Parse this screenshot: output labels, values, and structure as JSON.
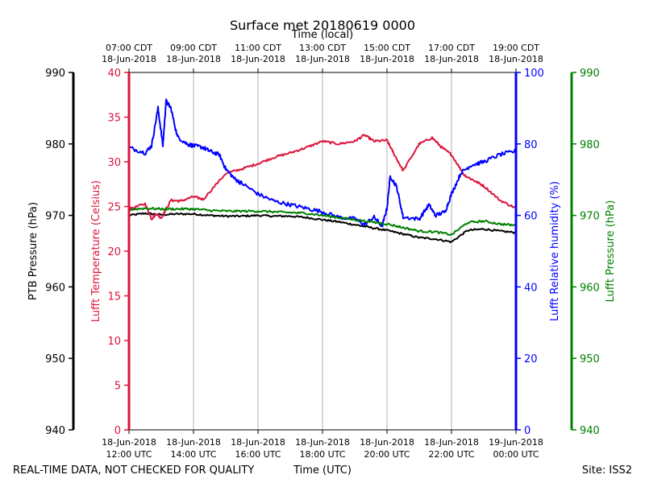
{
  "colors": {
    "pressure": "#000000",
    "temperature": "#dc143c",
    "humidity": "#0000ff",
    "luftt_pressure": "#008000",
    "grid": "#b0b0b0"
  },
  "footer": {
    "quality_note": "REAL-TIME DATA, NOT CHECKED FOR QUALITY",
    "site": "Site: ISS2"
  },
  "chart_data": {
    "type": "line",
    "title": "Surface met 20180619 0000",
    "xlabel": "Time (UTC)",
    "x2label": "Time (local)",
    "x_range_hours_utc": [
      12,
      24
    ],
    "bottom_ticks": [
      {
        "hour": 12,
        "date": "18-Jun-2018",
        "time": "12:00 UTC"
      },
      {
        "hour": 14,
        "date": "18-Jun-2018",
        "time": "14:00 UTC"
      },
      {
        "hour": 16,
        "date": "18-Jun-2018",
        "time": "16:00 UTC"
      },
      {
        "hour": 18,
        "date": "18-Jun-2018",
        "time": "18:00 UTC"
      },
      {
        "hour": 20,
        "date": "18-Jun-2018",
        "time": "20:00 UTC"
      },
      {
        "hour": 22,
        "date": "18-Jun-2018",
        "time": "22:00 UTC"
      },
      {
        "hour": 24,
        "date": "19-Jun-2018",
        "time": "00:00 UTC"
      }
    ],
    "top_ticks": [
      {
        "hour": 12,
        "time": "07:00 CDT",
        "date": "18-Jun-2018"
      },
      {
        "hour": 14,
        "time": "09:00 CDT",
        "date": "18-Jun-2018"
      },
      {
        "hour": 16,
        "time": "11:00 CDT",
        "date": "18-Jun-2018"
      },
      {
        "hour": 18,
        "time": "13:00 CDT",
        "date": "18-Jun-2018"
      },
      {
        "hour": 20,
        "time": "15:00 CDT",
        "date": "18-Jun-2018"
      },
      {
        "hour": 22,
        "time": "17:00 CDT",
        "date": "18-Jun-2018"
      },
      {
        "hour": 24,
        "time": "19:00 CDT",
        "date": "18-Jun-2018"
      }
    ],
    "axes": {
      "ptb": {
        "label": "PTB Pressure (hPa)",
        "range": [
          940,
          990
        ],
        "ticks": [
          940,
          950,
          960,
          970,
          980,
          990
        ]
      },
      "temp": {
        "label": "Lufft Temperature (Celsius)",
        "range": [
          0,
          40
        ],
        "ticks": [
          0,
          5,
          10,
          15,
          20,
          25,
          30,
          35,
          40
        ]
      },
      "rh": {
        "label": "Lufft Relative humidity (%)",
        "range": [
          0,
          100
        ],
        "ticks": [
          0,
          20,
          40,
          60,
          80,
          100
        ]
      },
      "lp": {
        "label": "Lufft Pressure (hPa)",
        "range": [
          940,
          990
        ],
        "ticks": [
          940,
          950,
          960,
          970,
          980,
          990
        ]
      }
    },
    "series": [
      {
        "name": "PTB Pressure",
        "axis": "ptb",
        "color": "#000000",
        "x": [
          12.0,
          12.5,
          13.0,
          13.5,
          14.0,
          14.5,
          15.0,
          15.5,
          16.0,
          16.5,
          17.0,
          17.5,
          18.0,
          18.5,
          19.0,
          19.5,
          20.0,
          20.5,
          21.0,
          21.5,
          22.0,
          22.5,
          23.0,
          23.5,
          24.0
        ],
        "y": [
          970.0,
          970.3,
          970.1,
          970.2,
          970.2,
          970.0,
          969.9,
          969.9,
          970.0,
          969.9,
          969.9,
          969.7,
          969.4,
          969.1,
          968.7,
          968.3,
          967.9,
          967.4,
          966.9,
          966.7,
          966.3,
          967.9,
          968.1,
          967.8,
          967.6
        ]
      },
      {
        "name": "Lufft Temperature",
        "axis": "temp",
        "color": "#dc143c",
        "x": [
          12.0,
          12.5,
          12.7,
          12.85,
          13.0,
          13.3,
          13.6,
          14.0,
          14.3,
          15.0,
          15.5,
          16.0,
          16.5,
          17.0,
          17.5,
          18.0,
          18.5,
          19.0,
          19.3,
          19.6,
          20.0,
          20.2,
          20.5,
          21.0,
          21.4,
          21.7,
          22.0,
          22.4,
          22.7,
          23.0,
          23.5,
          24.0
        ],
        "y": [
          24.7,
          25.3,
          23.6,
          24.2,
          23.7,
          25.7,
          25.6,
          26.1,
          25.8,
          28.7,
          29.2,
          29.8,
          30.5,
          31.0,
          31.6,
          32.3,
          32.0,
          32.3,
          33.0,
          32.3,
          32.4,
          31.0,
          29.0,
          32.0,
          32.7,
          31.6,
          30.8,
          28.5,
          27.9,
          27.3,
          25.7,
          24.8
        ]
      },
      {
        "name": "Lufft Relative humidity",
        "axis": "rh",
        "color": "#0000ff",
        "x": [
          12.0,
          12.5,
          12.7,
          12.9,
          13.05,
          13.15,
          13.3,
          13.5,
          13.8,
          14.0,
          14.3,
          14.5,
          14.8,
          15.0,
          15.3,
          15.5,
          16.0,
          16.5,
          17.0,
          17.5,
          18.0,
          18.5,
          19.0,
          19.3,
          19.6,
          19.85,
          20.0,
          20.1,
          20.3,
          20.5,
          21.0,
          21.3,
          21.5,
          21.8,
          22.0,
          22.3,
          22.6,
          23.0,
          23.5,
          24.0
        ],
        "y": [
          79.0,
          77.5,
          79.5,
          90.0,
          79.5,
          92.0,
          90.0,
          82.0,
          80.0,
          79.5,
          79.0,
          78.0,
          77.0,
          73.0,
          70.0,
          69.0,
          66.0,
          64.0,
          63.0,
          62.0,
          61.0,
          59.5,
          59.0,
          57.5,
          59.5,
          57.0,
          62.0,
          71.0,
          68.0,
          59.5,
          59.0,
          63.0,
          60.0,
          61.0,
          66.0,
          72.0,
          74.0,
          75.0,
          77.0,
          78.0
        ]
      },
      {
        "name": "Lufft Pressure",
        "axis": "lp",
        "color": "#008000",
        "x": [
          12.0,
          12.5,
          13.0,
          13.5,
          14.0,
          14.5,
          15.0,
          15.5,
          16.0,
          16.5,
          17.0,
          17.5,
          18.0,
          18.5,
          19.0,
          19.5,
          20.0,
          20.5,
          21.0,
          21.5,
          22.0,
          22.5,
          23.0,
          23.5,
          24.0
        ],
        "y": [
          970.8,
          971.0,
          970.9,
          970.9,
          970.9,
          970.7,
          970.6,
          970.6,
          970.6,
          970.5,
          970.4,
          970.3,
          970.0,
          969.7,
          969.4,
          969.1,
          968.8,
          968.3,
          967.8,
          967.7,
          967.3,
          969.0,
          969.2,
          968.8,
          968.6
        ]
      }
    ]
  }
}
